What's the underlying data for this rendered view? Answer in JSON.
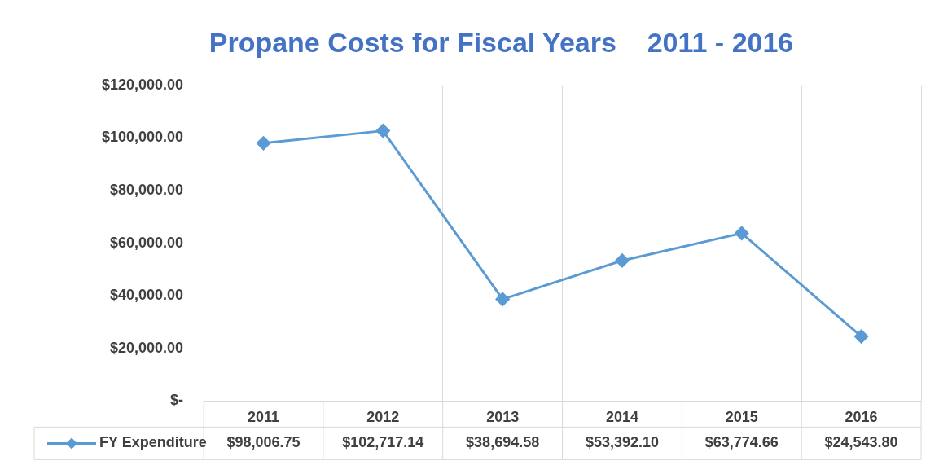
{
  "chart_data": {
    "type": "line",
    "title": "Propane Costs for Fiscal Years    2011 - 2016",
    "categories": [
      "2011",
      "2012",
      "2013",
      "2014",
      "2015",
      "2016"
    ],
    "series": [
      {
        "name": "FY Expenditure",
        "color": "#5b9bd5",
        "values": [
          98006.75,
          102717.14,
          38694.58,
          53392.1,
          63774.66,
          24543.8
        ],
        "value_labels": [
          "$98,006.75",
          "$102,717.14",
          "$38,694.58",
          "$53,392.10",
          "$63,774.66",
          "$24,543.80"
        ]
      }
    ],
    "ylim": [
      0,
      120000
    ],
    "yticks": [
      {
        "value": 0,
        "label": "$-"
      },
      {
        "value": 20000,
        "label": "$20,000.00"
      },
      {
        "value": 40000,
        "label": "$40,000.00"
      },
      {
        "value": 60000,
        "label": "$60,000.00"
      },
      {
        "value": 80000,
        "label": "$80,000.00"
      },
      {
        "value": 100000,
        "label": "$100,000.00"
      },
      {
        "value": 120000,
        "label": "$120,000.00"
      }
    ],
    "grid": "x",
    "legend": "bottom",
    "marker": "diamond",
    "line_style": "solid"
  }
}
